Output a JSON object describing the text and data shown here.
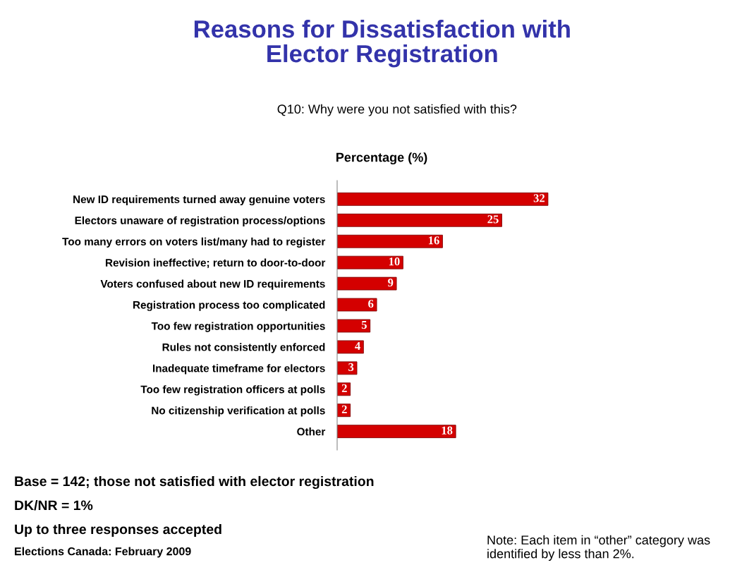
{
  "chart_data": {
    "type": "bar",
    "orientation": "horizontal",
    "title": "Reasons for Dissatisfaction with\nElector Registration",
    "subtitle": "Q10: Why were you not satisfied with this?",
    "xlabel": "Percentage (%)",
    "categories": [
      "New ID requirements turned away genuine voters",
      "Electors unaware of registration process/options",
      "Too many errors on voters list/many had to register",
      "Revision ineffective; return to door-to-door",
      "Voters confused about new ID requirements",
      "Registration process too complicated",
      "Too few registration opportunities",
      "Rules not consistently enforced",
      "Inadequate timeframe for electors",
      "Too few registration officers at polls",
      "No citizenship verification at polls",
      "Other"
    ],
    "values": [
      32,
      25,
      16,
      10,
      9,
      6,
      5,
      4,
      3,
      2,
      2,
      18
    ],
    "color": "#d40000",
    "data_labels": true,
    "grid": false,
    "legend": false,
    "tick_labels": "y",
    "annotations": [
      "Base = 142; those not satisfied with elector registration",
      "DK/NR = 1%",
      "Up to three responses accepted",
      "Elections Canada: February 2009",
      "Note: Each item in “other” category was identified by less than 2%."
    ]
  }
}
